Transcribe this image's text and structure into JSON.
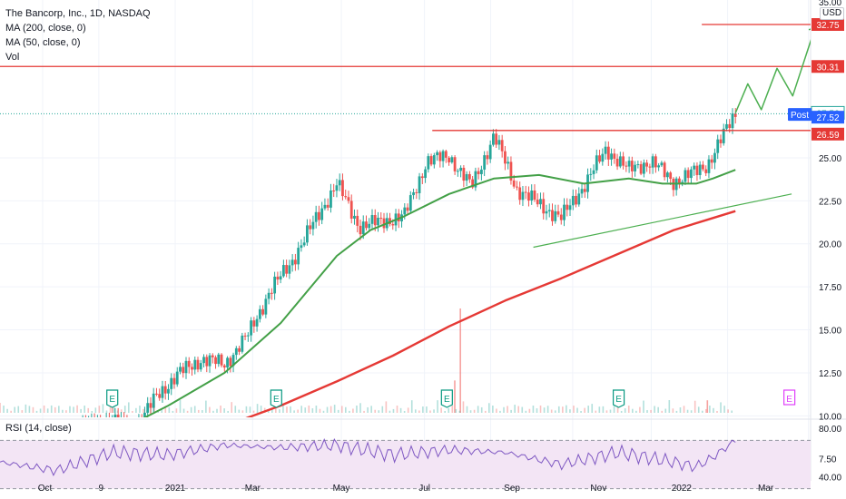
{
  "legend": {
    "title": "The Bancorp, Inc., 1D, NASDAQ",
    "ma200": "MA (200, close, 0)",
    "ma50": "MA (50, close, 0)",
    "vol": "Vol"
  },
  "currency": "USD",
  "rsi_title": "RSI (14, close)",
  "colors": {
    "up": "#26a69a",
    "down": "#ef5350",
    "ma200": "#e53935",
    "ma50": "#43a047",
    "projection": "#4caf50",
    "rsi": "#7e57c2",
    "rsi_fill": "#f3e5f5",
    "resistance": "#e53935",
    "earnings_past": "#089981",
    "earnings_future": "#e040fb",
    "last_price": "#26a69a",
    "post_badge": "#2962ff"
  },
  "chart_data": {
    "type": "candlestick",
    "x_tick_labels": [
      "Oct",
      "9",
      "2021",
      "Mar",
      "May",
      "Jul",
      "Sep",
      "Nov",
      "2022",
      "Mar"
    ],
    "y_ticks": [
      "35.00",
      "25.00",
      "22.50",
      "20.00",
      "17.50",
      "15.00",
      "12.50",
      "10.00",
      "7.50"
    ],
    "ylim": [
      6.7,
      35.2
    ],
    "price_labels": [
      {
        "text": "32.75",
        "value": 32.75,
        "kind": "level"
      },
      {
        "text": "30.31",
        "value": 30.31,
        "kind": "level"
      },
      {
        "text": "27.56",
        "value": 27.56,
        "kind": "last"
      },
      {
        "text": "Post",
        "value": 27.52,
        "kind": "post-tag"
      },
      {
        "text": "27.52",
        "value": 27.52,
        "kind": "post"
      },
      {
        "text": "26.59",
        "value": 26.59,
        "kind": "level"
      }
    ],
    "horizontal_levels": [
      {
        "value": 32.75,
        "x_from": 0.625
      },
      {
        "value": 30.31,
        "x_from": 0.0
      },
      {
        "value": 26.59,
        "x_from": 0.385
      }
    ],
    "last_price_line": 27.56,
    "trendline": {
      "x": [
        0.475,
        0.705
      ],
      "y": [
        19.8,
        22.9
      ]
    },
    "projection": {
      "x": [
        0.655,
        0.666,
        0.678,
        0.692,
        0.706,
        0.726
      ],
      "y": [
        27.6,
        29.3,
        27.8,
        30.2,
        28.6,
        32.6
      ]
    },
    "key_points": {
      "x": [
        0.0,
        0.03,
        0.05,
        0.08,
        0.1,
        0.12,
        0.14,
        0.16,
        0.18,
        0.2,
        0.22,
        0.24,
        0.26,
        0.28,
        0.3,
        0.32,
        0.34,
        0.36,
        0.38,
        0.4,
        0.42,
        0.44,
        0.46,
        0.48,
        0.5,
        0.52,
        0.54,
        0.56,
        0.58,
        0.6,
        0.62,
        0.63,
        0.655
      ],
      "y": [
        9.5,
        9.0,
        8.6,
        9.4,
        9.7,
        9.2,
        11.2,
        12.5,
        13.3,
        13.0,
        14.6,
        17.2,
        19.0,
        21.3,
        23.5,
        21.0,
        21.3,
        21.6,
        24.8,
        25.1,
        23.3,
        26.3,
        23.2,
        22.3,
        21.5,
        23.4,
        25.5,
        24.3,
        24.8,
        23.6,
        24.2,
        24.6,
        27.6
      ]
    },
    "ma50": {
      "x": [
        0.0,
        0.05,
        0.1,
        0.12,
        0.15,
        0.2,
        0.25,
        0.3,
        0.33,
        0.36,
        0.4,
        0.44,
        0.48,
        0.52,
        0.56,
        0.59,
        0.62,
        0.635,
        0.655
      ],
      "y": [
        9.3,
        9.2,
        9.2,
        9.6,
        10.6,
        12.5,
        15.4,
        19.3,
        20.8,
        21.6,
        22.9,
        23.8,
        24.0,
        23.5,
        23.8,
        23.5,
        23.5,
        23.8,
        24.3
      ]
    },
    "ma200": {
      "x": [
        0.0,
        0.05,
        0.1,
        0.15,
        0.18,
        0.2,
        0.25,
        0.3,
        0.35,
        0.4,
        0.45,
        0.5,
        0.55,
        0.6,
        0.63,
        0.655
      ],
      "y": [
        9.6,
        9.3,
        9.0,
        8.9,
        9.0,
        9.4,
        10.6,
        12.0,
        13.5,
        15.2,
        16.7,
        18.0,
        19.4,
        20.8,
        21.4,
        21.9
      ]
    },
    "volume_spikes": [
      {
        "x": 0.41,
        "value": 1.0
      },
      {
        "x": 0.405,
        "value": 0.31
      },
      {
        "x": 0.1,
        "value": 0.1
      },
      {
        "x": 0.63,
        "value": 0.12
      }
    ],
    "earnings_markers": [
      {
        "label": "E",
        "x": 0.1,
        "future": false
      },
      {
        "label": "E",
        "x": 0.246,
        "future": false
      },
      {
        "label": "E",
        "x": 0.398,
        "future": false
      },
      {
        "label": "E",
        "x": 0.551,
        "future": false
      },
      {
        "label": "E",
        "x": 0.703,
        "future": true
      }
    ],
    "rsi": {
      "y_ticks": [
        "80.00",
        "40.00"
      ],
      "ylim": [
        30,
        85
      ],
      "upper_band": 70,
      "lower_band": 30,
      "key_points": {
        "x": [
          0.0,
          0.05,
          0.1,
          0.15,
          0.2,
          0.25,
          0.3,
          0.35,
          0.4,
          0.45,
          0.5,
          0.55,
          0.6,
          0.62,
          0.635,
          0.655
        ],
        "y": [
          52,
          45,
          60,
          58,
          66,
          64,
          66,
          58,
          62,
          60,
          50,
          60,
          52,
          48,
          56,
          70
        ]
      }
    }
  }
}
